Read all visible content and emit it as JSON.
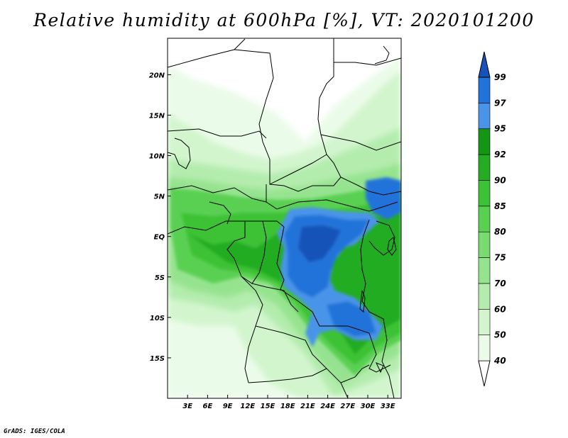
{
  "title": "Relative humidity at 600hPa [%], VT: 2020101200",
  "credit": "GrADS: IGES/COLA",
  "map": {
    "lat_ticks": [
      "20N",
      "15N",
      "10N",
      "5N",
      "EQ",
      "5S",
      "10S",
      "15S"
    ],
    "lat_values": [
      20,
      15,
      10,
      5,
      0,
      -5,
      -10,
      -15
    ],
    "lon_ticks": [
      "3E",
      "6E",
      "9E",
      "12E",
      "15E",
      "18E",
      "21E",
      "24E",
      "27E",
      "30E",
      "33E"
    ],
    "lon_values": [
      3,
      6,
      9,
      12,
      15,
      18,
      21,
      24,
      27,
      30,
      33
    ],
    "lon_range": [
      0,
      35
    ],
    "lat_range": [
      -20,
      24.5
    ]
  },
  "colorbar": {
    "labels": [
      "40",
      "50",
      "60",
      "70",
      "75",
      "80",
      "85",
      "90",
      "92",
      "95",
      "97",
      "99"
    ],
    "colors": [
      "#ebfbe9",
      "#d2f5cd",
      "#b4ecae",
      "#96e38f",
      "#78da70",
      "#5ad052",
      "#3cc236",
      "#24ac22",
      "#149516",
      "#4a94e8",
      "#2273d9",
      "#1652b8"
    ],
    "under_color": "#ffffff",
    "over_color": "#1652b8"
  }
}
